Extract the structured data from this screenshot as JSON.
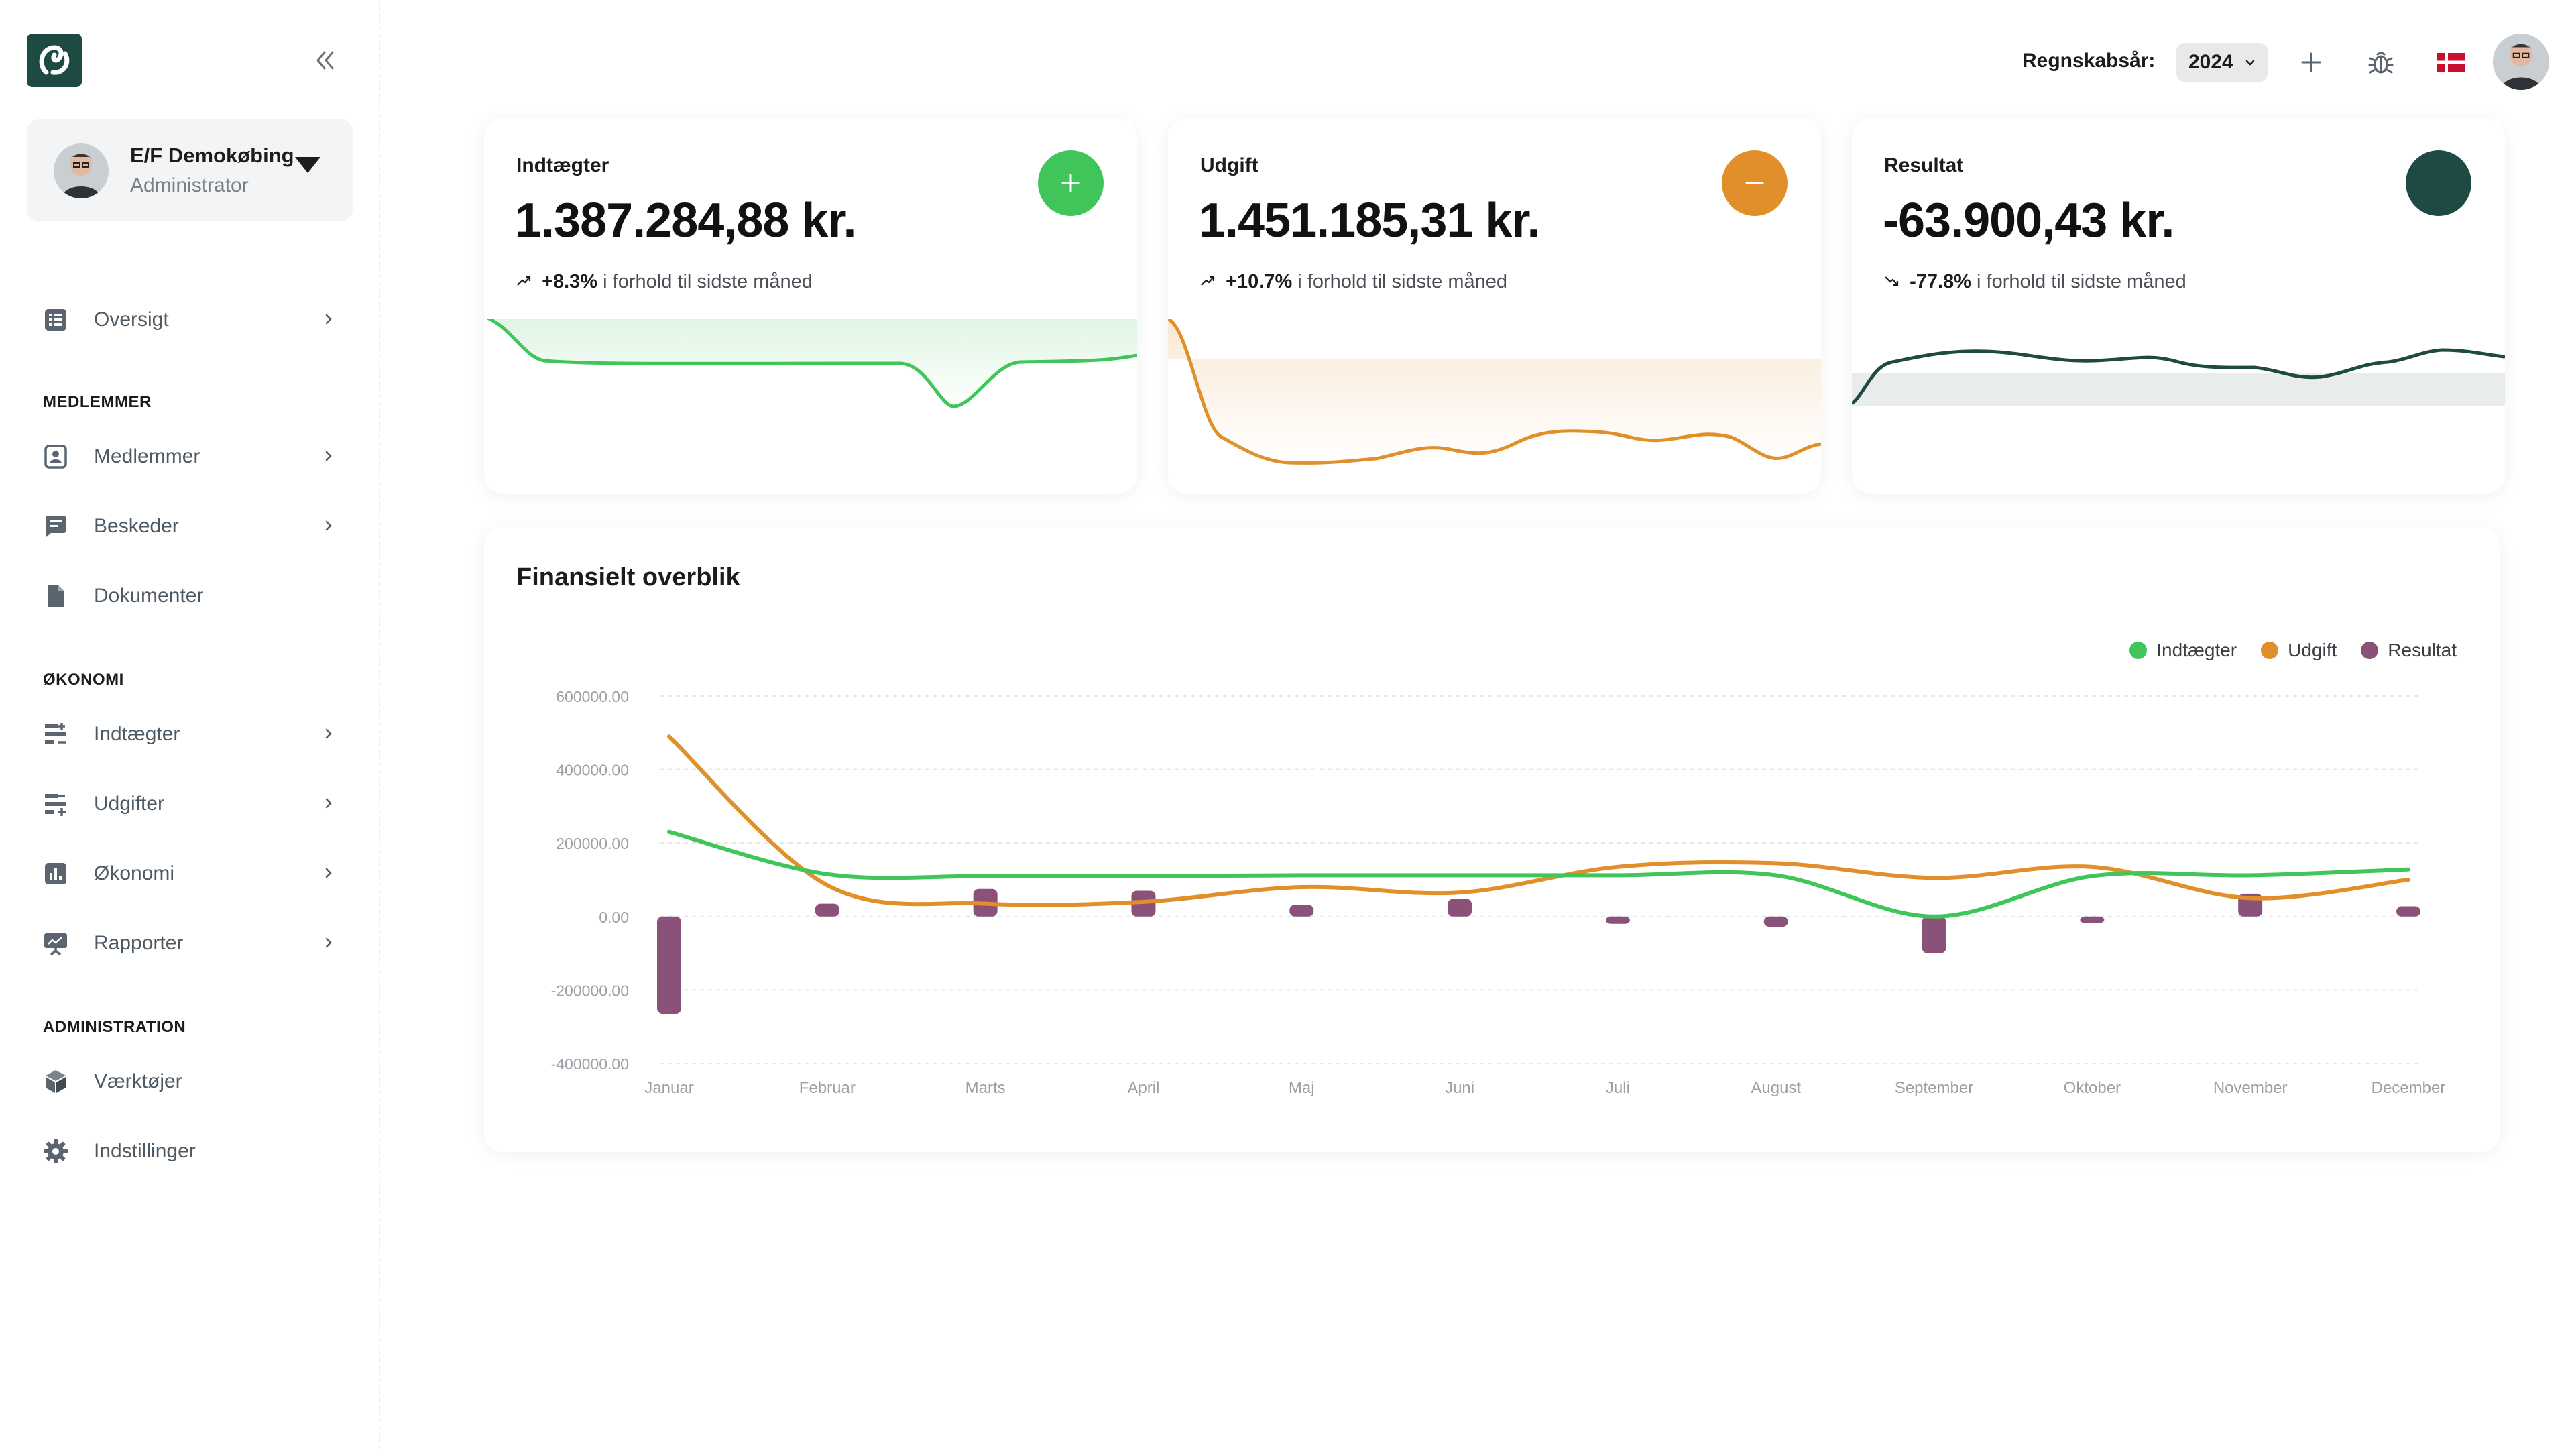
{
  "colors": {
    "brand": "#1e4a44",
    "income": "#3fc55a",
    "expense": "#e08f2a",
    "result": "#8a5279",
    "result_line": "#1e4a44"
  },
  "sidebar": {
    "org": {
      "name": "E/F Demokøbing",
      "role": "Administrator"
    },
    "items": [
      {
        "label": "Oversigt",
        "icon": "list-icon",
        "chevron": true
      },
      {
        "section": "MEDLEMMER"
      },
      {
        "label": "Medlemmer",
        "icon": "member-card-icon",
        "chevron": true
      },
      {
        "label": "Beskeder",
        "icon": "message-icon",
        "chevron": true
      },
      {
        "label": "Dokumenter",
        "icon": "document-icon",
        "chevron": false
      },
      {
        "section": "ØKONOMI"
      },
      {
        "label": "Indtægter",
        "icon": "income-icon",
        "chevron": true
      },
      {
        "label": "Udgifter",
        "icon": "expense-icon",
        "chevron": true
      },
      {
        "label": "Økonomi",
        "icon": "bar-chart-icon",
        "chevron": true
      },
      {
        "label": "Rapporter",
        "icon": "presentation-icon",
        "chevron": true
      },
      {
        "section": "ADMINISTRATION"
      },
      {
        "label": "Værktøjer",
        "icon": "cube-icon",
        "chevron": false
      },
      {
        "label": "Indstillinger",
        "icon": "gear-icon",
        "chevron": false
      }
    ]
  },
  "header": {
    "fiscal_year_label": "Regnskabsår:",
    "fiscal_year_value": "2024"
  },
  "kpis": [
    {
      "title": "Indtægter",
      "value": "1.387.284,88 kr.",
      "delta": "+8.3%",
      "delta_text": "i forhold til sidste måned",
      "trend": "up",
      "badge_icon": "plus-icon"
    },
    {
      "title": "Udgift",
      "value": "1.451.185,31 kr.",
      "delta": "+10.7%",
      "delta_text": "i forhold til sidste måned",
      "trend": "up",
      "badge_icon": "minus-icon"
    },
    {
      "title": "Resultat",
      "value": "-63.900,43 kr.",
      "delta": "-77.8%",
      "delta_text": "i forhold til sidste måned",
      "trend": "down",
      "badge_icon": "circle-icon"
    }
  ],
  "overview": {
    "title": "Finansielt overblik"
  },
  "chart_data": {
    "type": "line",
    "title": "Finansielt overblik",
    "categories": [
      "Januar",
      "Februar",
      "Marts",
      "April",
      "Maj",
      "Juni",
      "Juli",
      "August",
      "September",
      "Oktober",
      "November",
      "December"
    ],
    "y_ticks": [
      "600000.00",
      "400000.00",
      "200000.00",
      "0.00",
      "-200000.00",
      "-400000.00"
    ],
    "ylim": [
      -400000,
      600000
    ],
    "grid": true,
    "legend_position": "top-right",
    "series": [
      {
        "name": "Indtægter",
        "type": "line",
        "values": [
          230000,
          115000,
          110000,
          110000,
          112000,
          112000,
          112000,
          112000,
          0,
          110000,
          112000,
          128000
        ]
      },
      {
        "name": "Udgift",
        "type": "line",
        "values": [
          490000,
          85000,
          35000,
          40000,
          80000,
          65000,
          135000,
          145000,
          105000,
          135000,
          50000,
          100000
        ]
      },
      {
        "name": "Resultat",
        "type": "bar",
        "values": [
          -265000,
          35000,
          75000,
          70000,
          32000,
          48000,
          -20000,
          -28000,
          -100000,
          -18000,
          62000,
          28000
        ]
      }
    ]
  }
}
